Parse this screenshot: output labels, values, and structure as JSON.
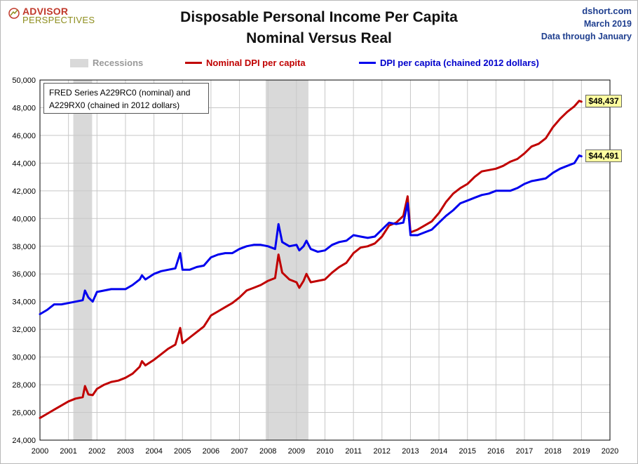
{
  "logo": {
    "line1": "ADVISOR",
    "line2": "PERSPECTIVES"
  },
  "source": {
    "site": "dshort.com",
    "date": "March 2019",
    "through": "Data through January"
  },
  "note": {
    "line1": "FRED Series A229RC0 (nominal) and",
    "line2": "A229RX0 (chained in 2012 dollars)"
  },
  "colors": {
    "nominal": "#c00000",
    "real": "#0000ee",
    "recession": "#d9d9d9"
  },
  "chart_data": {
    "type": "line",
    "title": "Disposable Personal Income Per Capita",
    "subtitle": "Nominal Versus Real",
    "xlim": [
      2000,
      2020
    ],
    "ylim": [
      24000,
      50000
    ],
    "x_ticks": [
      "2000",
      "2001",
      "2002",
      "2003",
      "2004",
      "2005",
      "2006",
      "2007",
      "2008",
      "2009",
      "2010",
      "2011",
      "2012",
      "2013",
      "2014",
      "2015",
      "2016",
      "2017",
      "2018",
      "2019",
      "2020"
    ],
    "y_ticks": [
      "24,000",
      "26,000",
      "28,000",
      "30,000",
      "32,000",
      "34,000",
      "36,000",
      "38,000",
      "40,000",
      "42,000",
      "44,000",
      "46,000",
      "48,000",
      "50,000"
    ],
    "grid": true,
    "legend": "top",
    "recessions": [
      {
        "start": 2001.17,
        "end": 2001.83
      },
      {
        "start": 2007.92,
        "end": 2009.42
      }
    ],
    "legend_labels": {
      "recession": "Recessions"
    },
    "series": [
      {
        "name": "Nominal DPI per capita",
        "end_label": "$48,437",
        "points": [
          [
            2000.0,
            25600
          ],
          [
            2000.25,
            25900
          ],
          [
            2000.5,
            26200
          ],
          [
            2000.75,
            26500
          ],
          [
            2001.0,
            26800
          ],
          [
            2001.25,
            27000
          ],
          [
            2001.5,
            27100
          ],
          [
            2001.58,
            27900
          ],
          [
            2001.7,
            27300
          ],
          [
            2001.85,
            27250
          ],
          [
            2002.0,
            27700
          ],
          [
            2002.25,
            28000
          ],
          [
            2002.5,
            28200
          ],
          [
            2002.75,
            28300
          ],
          [
            2003.0,
            28500
          ],
          [
            2003.25,
            28800
          ],
          [
            2003.5,
            29300
          ],
          [
            2003.58,
            29700
          ],
          [
            2003.7,
            29400
          ],
          [
            2004.0,
            29800
          ],
          [
            2004.25,
            30200
          ],
          [
            2004.5,
            30600
          ],
          [
            2004.75,
            30900
          ],
          [
            2004.92,
            32100
          ],
          [
            2005.0,
            31000
          ],
          [
            2005.25,
            31400
          ],
          [
            2005.5,
            31800
          ],
          [
            2005.75,
            32200
          ],
          [
            2006.0,
            33000
          ],
          [
            2006.25,
            33300
          ],
          [
            2006.5,
            33600
          ],
          [
            2006.75,
            33900
          ],
          [
            2007.0,
            34300
          ],
          [
            2007.25,
            34800
          ],
          [
            2007.5,
            35000
          ],
          [
            2007.75,
            35200
          ],
          [
            2008.0,
            35500
          ],
          [
            2008.25,
            35700
          ],
          [
            2008.37,
            37400
          ],
          [
            2008.5,
            36100
          ],
          [
            2008.75,
            35600
          ],
          [
            2009.0,
            35400
          ],
          [
            2009.1,
            35000
          ],
          [
            2009.25,
            35500
          ],
          [
            2009.35,
            36000
          ],
          [
            2009.5,
            35400
          ],
          [
            2009.75,
            35500
          ],
          [
            2010.0,
            35600
          ],
          [
            2010.25,
            36100
          ],
          [
            2010.5,
            36500
          ],
          [
            2010.75,
            36800
          ],
          [
            2011.0,
            37500
          ],
          [
            2011.25,
            37900
          ],
          [
            2011.5,
            38000
          ],
          [
            2011.75,
            38200
          ],
          [
            2012.0,
            38700
          ],
          [
            2012.25,
            39500
          ],
          [
            2012.5,
            39700
          ],
          [
            2012.75,
            40200
          ],
          [
            2012.9,
            41600
          ],
          [
            2013.0,
            39000
          ],
          [
            2013.25,
            39200
          ],
          [
            2013.5,
            39500
          ],
          [
            2013.75,
            39800
          ],
          [
            2014.0,
            40400
          ],
          [
            2014.25,
            41200
          ],
          [
            2014.5,
            41800
          ],
          [
            2014.75,
            42200
          ],
          [
            2015.0,
            42500
          ],
          [
            2015.25,
            43000
          ],
          [
            2015.5,
            43400
          ],
          [
            2015.75,
            43500
          ],
          [
            2016.0,
            43600
          ],
          [
            2016.25,
            43800
          ],
          [
            2016.5,
            44100
          ],
          [
            2016.75,
            44300
          ],
          [
            2017.0,
            44700
          ],
          [
            2017.25,
            45200
          ],
          [
            2017.5,
            45400
          ],
          [
            2017.75,
            45800
          ],
          [
            2018.0,
            46600
          ],
          [
            2018.25,
            47200
          ],
          [
            2018.5,
            47700
          ],
          [
            2018.75,
            48100
          ],
          [
            2018.92,
            48500
          ],
          [
            2019.0,
            48437
          ]
        ]
      },
      {
        "name": "DPI per capita (chained 2012 dollars)",
        "end_label": "$44,491",
        "points": [
          [
            2000.0,
            33100
          ],
          [
            2000.25,
            33400
          ],
          [
            2000.5,
            33800
          ],
          [
            2000.75,
            33800
          ],
          [
            2001.0,
            33900
          ],
          [
            2001.25,
            34000
          ],
          [
            2001.5,
            34100
          ],
          [
            2001.58,
            34800
          ],
          [
            2001.7,
            34300
          ],
          [
            2001.85,
            34000
          ],
          [
            2002.0,
            34700
          ],
          [
            2002.25,
            34800
          ],
          [
            2002.5,
            34900
          ],
          [
            2002.75,
            34900
          ],
          [
            2003.0,
            34900
          ],
          [
            2003.25,
            35200
          ],
          [
            2003.5,
            35600
          ],
          [
            2003.58,
            35900
          ],
          [
            2003.7,
            35600
          ],
          [
            2004.0,
            36000
          ],
          [
            2004.25,
            36200
          ],
          [
            2004.5,
            36300
          ],
          [
            2004.75,
            36400
          ],
          [
            2004.92,
            37500
          ],
          [
            2005.0,
            36300
          ],
          [
            2005.25,
            36300
          ],
          [
            2005.5,
            36500
          ],
          [
            2005.75,
            36600
          ],
          [
            2006.0,
            37200
          ],
          [
            2006.25,
            37400
          ],
          [
            2006.5,
            37500
          ],
          [
            2006.75,
            37500
          ],
          [
            2007.0,
            37800
          ],
          [
            2007.25,
            38000
          ],
          [
            2007.5,
            38100
          ],
          [
            2007.75,
            38100
          ],
          [
            2008.0,
            38000
          ],
          [
            2008.25,
            37800
          ],
          [
            2008.37,
            39600
          ],
          [
            2008.5,
            38300
          ],
          [
            2008.75,
            38000
          ],
          [
            2009.0,
            38100
          ],
          [
            2009.1,
            37700
          ],
          [
            2009.25,
            38000
          ],
          [
            2009.35,
            38400
          ],
          [
            2009.5,
            37800
          ],
          [
            2009.75,
            37600
          ],
          [
            2010.0,
            37700
          ],
          [
            2010.25,
            38100
          ],
          [
            2010.5,
            38300
          ],
          [
            2010.75,
            38400
          ],
          [
            2011.0,
            38800
          ],
          [
            2011.25,
            38700
          ],
          [
            2011.5,
            38600
          ],
          [
            2011.75,
            38700
          ],
          [
            2012.0,
            39200
          ],
          [
            2012.25,
            39700
          ],
          [
            2012.5,
            39600
          ],
          [
            2012.75,
            39700
          ],
          [
            2012.9,
            41100
          ],
          [
            2013.0,
            38800
          ],
          [
            2013.25,
            38800
          ],
          [
            2013.5,
            39000
          ],
          [
            2013.75,
            39200
          ],
          [
            2014.0,
            39700
          ],
          [
            2014.25,
            40200
          ],
          [
            2014.5,
            40600
          ],
          [
            2014.75,
            41100
          ],
          [
            2015.0,
            41300
          ],
          [
            2015.25,
            41500
          ],
          [
            2015.5,
            41700
          ],
          [
            2015.75,
            41800
          ],
          [
            2016.0,
            42000
          ],
          [
            2016.25,
            42000
          ],
          [
            2016.5,
            42000
          ],
          [
            2016.75,
            42200
          ],
          [
            2017.0,
            42500
          ],
          [
            2017.25,
            42700
          ],
          [
            2017.5,
            42800
          ],
          [
            2017.75,
            42900
          ],
          [
            2018.0,
            43300
          ],
          [
            2018.25,
            43600
          ],
          [
            2018.5,
            43800
          ],
          [
            2018.75,
            44000
          ],
          [
            2018.92,
            44550
          ],
          [
            2019.0,
            44491
          ]
        ]
      }
    ]
  }
}
